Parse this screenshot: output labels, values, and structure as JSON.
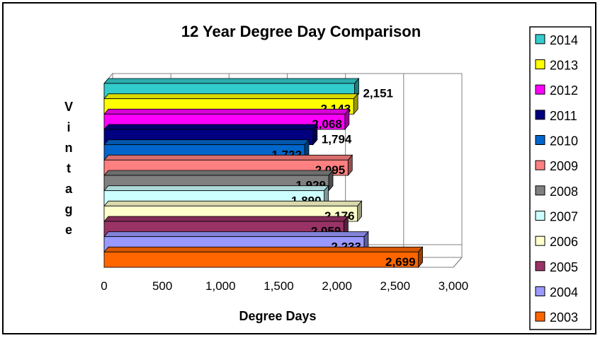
{
  "chart_data": {
    "type": "bar",
    "orientation": "horizontal",
    "three_d": true,
    "title": "12 Year Degree Day Comparison",
    "xlabel": "Degree Days",
    "ylabel": "Vintage",
    "xlim": [
      0,
      3000
    ],
    "x_ticks": [
      "0",
      "500",
      "1,000",
      "1,500",
      "2,000",
      "2,500",
      "3,000"
    ],
    "grid": "vertical",
    "legend_position": "right",
    "series": [
      {
        "name": "2014",
        "value": 2151,
        "label": "2,151",
        "color": "#33CCCC"
      },
      {
        "name": "2013",
        "value": 2143,
        "label": "2,143",
        "color": "#FFFF00"
      },
      {
        "name": "2012",
        "value": 2068,
        "label": "2,068",
        "color": "#FF00FF"
      },
      {
        "name": "2011",
        "value": 1794,
        "label": "1,794",
        "color": "#000080"
      },
      {
        "name": "2010",
        "value": 1722,
        "label": "1,722",
        "color": "#0066CC"
      },
      {
        "name": "2009",
        "value": 2095,
        "label": "2,095",
        "color": "#FF8080"
      },
      {
        "name": "2008",
        "value": 1929,
        "label": "1,929",
        "color": "#808080"
      },
      {
        "name": "2007",
        "value": 1890,
        "label": "1,890",
        "color": "#CCFFFF"
      },
      {
        "name": "2006",
        "value": 2176,
        "label": "2,176",
        "color": "#FFFFCC"
      },
      {
        "name": "2005",
        "value": 2059,
        "label": "2,059",
        "color": "#993366"
      },
      {
        "name": "2004",
        "value": 2233,
        "label": "2,233",
        "color": "#9999FF"
      },
      {
        "name": "2003",
        "value": 2699,
        "label": "2,699",
        "color": "#FF6600"
      }
    ]
  }
}
